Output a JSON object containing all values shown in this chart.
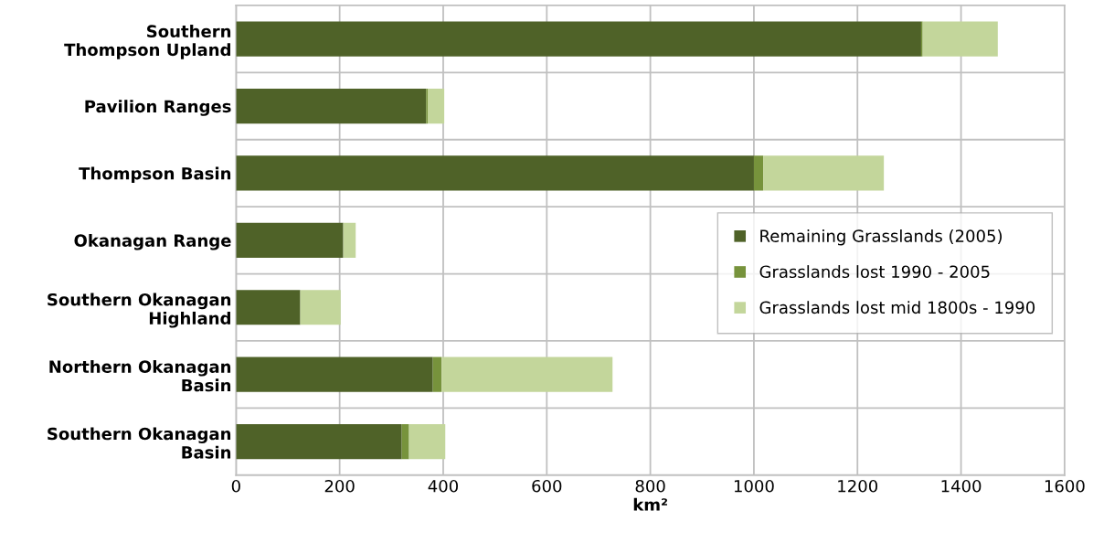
{
  "chart_data": {
    "type": "bar",
    "orientation": "horizontal",
    "stacked": true,
    "xlabel": "km²",
    "categories": [
      "Southern\nThompson Upland",
      "Pavilion Ranges",
      "Thompson Basin",
      "Okanagan Range",
      "Southern Okanagan\nHighland",
      "Northern Okanagan\nBasin",
      "Southern Okanagan\nBasin"
    ],
    "series": [
      {
        "name": "Remaining Grasslands (2005)",
        "color": "#4f6228",
        "values": [
          1323,
          367,
          1000,
          207,
          124,
          380,
          320
        ]
      },
      {
        "name": "Grasslands lost 1990 - 2005",
        "color": "#77933c",
        "values": [
          3,
          3,
          18,
          null,
          0,
          17,
          14
        ]
      },
      {
        "name": "Grasslands lost mid 1800s - 1990",
        "color": "#c3d69b",
        "values": [
          145,
          32,
          233,
          24,
          78,
          330,
          70
        ]
      }
    ],
    "xlim": [
      0,
      1600
    ],
    "xticks": [
      0,
      200,
      400,
      600,
      800,
      1000,
      1200,
      1400,
      1600
    ],
    "grid": true,
    "legend": "center right"
  }
}
